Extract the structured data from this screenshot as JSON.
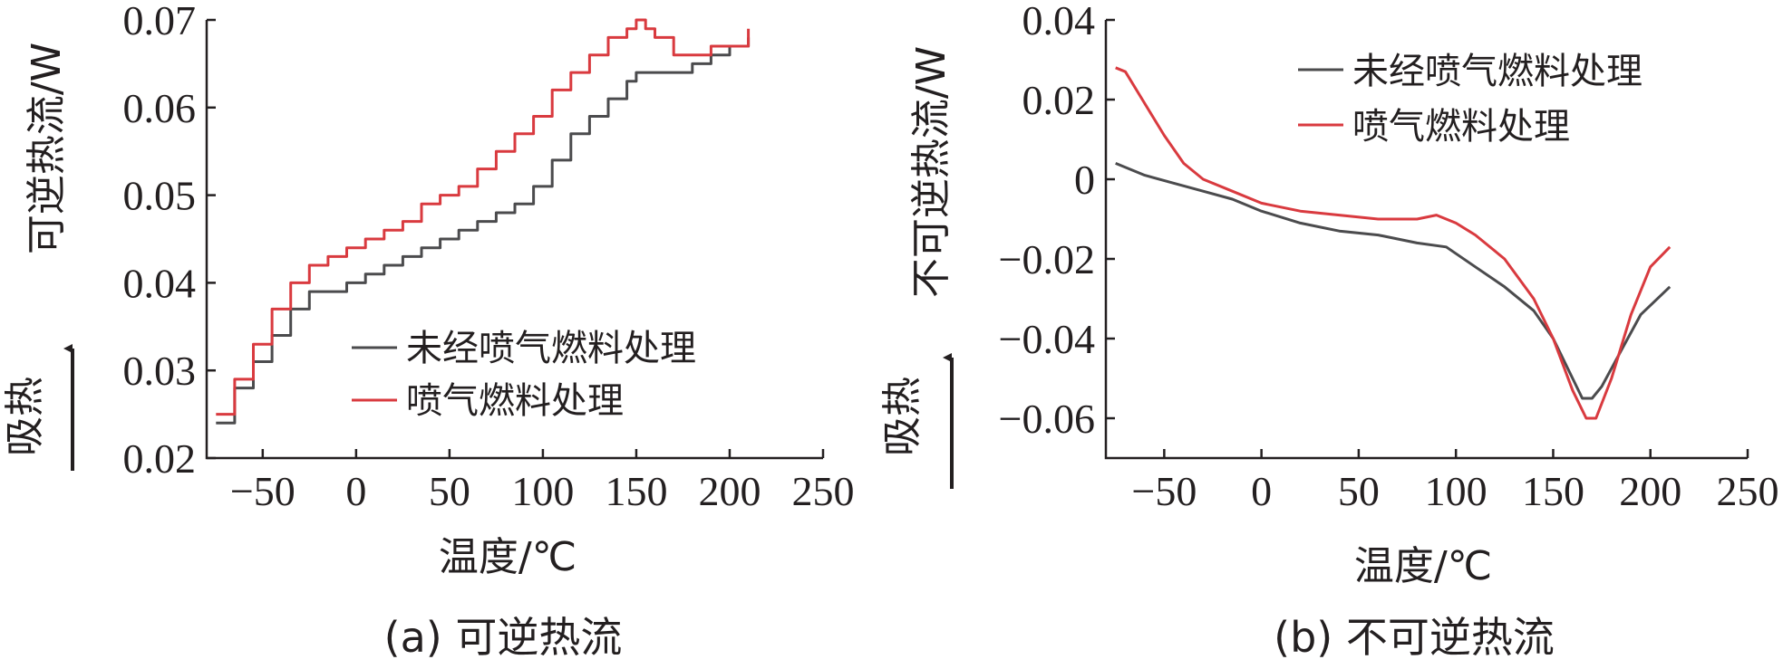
{
  "colors": {
    "untreated": "#4b4b4d",
    "treated": "#d93a3f",
    "text": "#231f20"
  },
  "chart_data": [
    {
      "type": "line",
      "caption": "(a) 可逆热流",
      "xlabel": "温度/℃",
      "ylabel": "可逆热流/W",
      "side_note": "吸热",
      "xlim": [
        -80,
        250
      ],
      "ylim": [
        0.02,
        0.07
      ],
      "xticks": [
        "-50",
        "0",
        "50",
        "100",
        "150",
        "200",
        "250"
      ],
      "yticks": [
        "0.02",
        "0.03",
        "0.04",
        "0.05",
        "0.06",
        "0.07"
      ],
      "legend_position": "lower-right",
      "series": [
        {
          "name": "未经喷气燃料处理",
          "x": [
            -75,
            -65,
            -55,
            -45,
            -35,
            -25,
            -15,
            -5,
            5,
            15,
            25,
            35,
            45,
            55,
            65,
            75,
            85,
            95,
            105,
            115,
            125,
            135,
            145,
            150,
            160,
            170,
            180,
            190,
            200,
            210
          ],
          "y": [
            0.024,
            0.028,
            0.031,
            0.034,
            0.037,
            0.039,
            0.039,
            0.04,
            0.041,
            0.042,
            0.043,
            0.044,
            0.045,
            0.046,
            0.047,
            0.048,
            0.049,
            0.051,
            0.054,
            0.057,
            0.059,
            0.061,
            0.063,
            0.064,
            0.064,
            0.064,
            0.065,
            0.066,
            0.067,
            0.068
          ]
        },
        {
          "name": "喷气燃料处理",
          "x": [
            -75,
            -65,
            -55,
            -45,
            -35,
            -25,
            -15,
            -5,
            5,
            15,
            25,
            35,
            45,
            55,
            65,
            75,
            85,
            95,
            105,
            115,
            125,
            135,
            145,
            150,
            155,
            160,
            170,
            180,
            190,
            200,
            210
          ],
          "y": [
            0.025,
            0.029,
            0.033,
            0.037,
            0.04,
            0.042,
            0.043,
            0.044,
            0.045,
            0.046,
            0.047,
            0.049,
            0.05,
            0.051,
            0.053,
            0.055,
            0.057,
            0.059,
            0.062,
            0.064,
            0.066,
            0.068,
            0.069,
            0.07,
            0.069,
            0.068,
            0.066,
            0.066,
            0.067,
            0.067,
            0.069
          ]
        }
      ]
    },
    {
      "type": "line",
      "caption": "(b) 不可逆热流",
      "xlabel": "温度/℃",
      "ylabel": "不可逆热流/W",
      "side_note": "吸热",
      "xlim": [
        -80,
        250
      ],
      "ylim": [
        -0.07,
        0.04
      ],
      "xticks": [
        "-50",
        "0",
        "50",
        "100",
        "150",
        "200",
        "250"
      ],
      "yticks": [
        "-0.06",
        "-0.04",
        "-0.02",
        "0",
        "0.02",
        "0.04"
      ],
      "legend_position": "top-right",
      "series": [
        {
          "name": "未经喷气燃料处理",
          "x": [
            -75,
            -60,
            -45,
            -30,
            -15,
            0,
            20,
            40,
            60,
            80,
            95,
            110,
            125,
            140,
            150,
            160,
            165,
            170,
            175,
            185,
            195,
            210
          ],
          "y": [
            0.004,
            0.001,
            -0.001,
            -0.003,
            -0.005,
            -0.008,
            -0.011,
            -0.013,
            -0.014,
            -0.016,
            -0.017,
            -0.022,
            -0.027,
            -0.033,
            -0.04,
            -0.05,
            -0.055,
            -0.055,
            -0.052,
            -0.043,
            -0.034,
            -0.027
          ]
        },
        {
          "name": "喷气燃料处理",
          "x": [
            -75,
            -70,
            -60,
            -50,
            -40,
            -30,
            -15,
            0,
            20,
            40,
            60,
            80,
            90,
            100,
            110,
            125,
            140,
            150,
            160,
            167,
            172,
            180,
            190,
            200,
            210
          ],
          "y": [
            0.028,
            0.027,
            0.019,
            0.011,
            0.004,
            0.0,
            -0.003,
            -0.006,
            -0.008,
            -0.009,
            -0.01,
            -0.01,
            -0.009,
            -0.011,
            -0.014,
            -0.02,
            -0.03,
            -0.04,
            -0.053,
            -0.06,
            -0.06,
            -0.05,
            -0.034,
            -0.022,
            -0.017
          ]
        }
      ]
    }
  ]
}
